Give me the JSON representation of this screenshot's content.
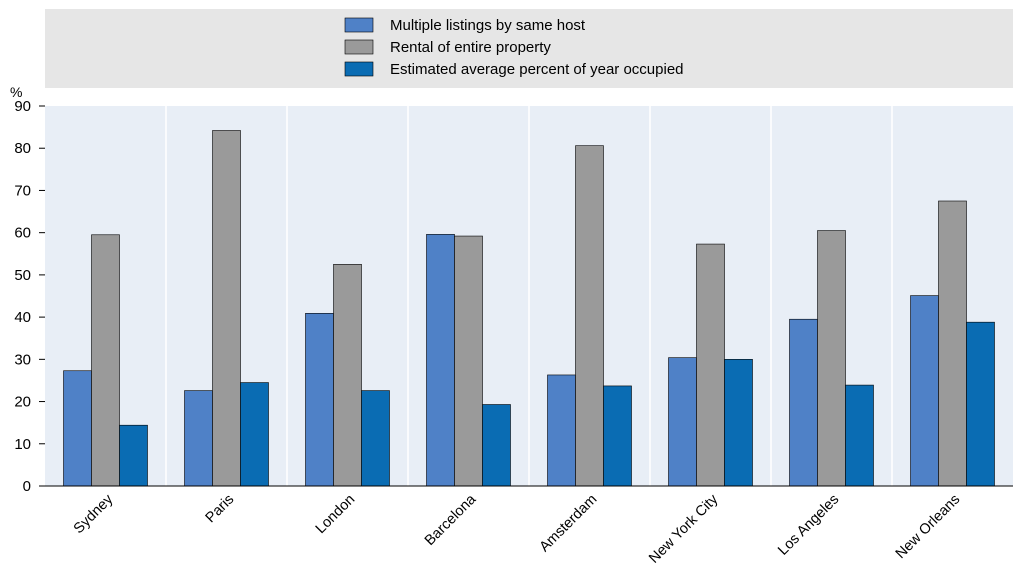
{
  "chart_data": {
    "type": "bar",
    "title": "",
    "xlabel": "",
    "ylabel": "%",
    "ylim": [
      0,
      90
    ],
    "yticks": [
      0,
      10,
      20,
      30,
      40,
      50,
      60,
      70,
      80,
      90
    ],
    "grid": "vertical separators between categories",
    "legend_placement": "top",
    "categories": [
      "Sydney",
      "Paris",
      "London",
      "Barcelona",
      "Amsterdam",
      "New York City",
      "Los Angeles",
      "New Orleans"
    ],
    "series": [
      {
        "name": "Multiple listings by same host",
        "color": "#4f81c7",
        "values": [
          27.3,
          22.6,
          40.9,
          59.6,
          26.3,
          30.4,
          39.5,
          45.1
        ]
      },
      {
        "name": "Rental of entire property",
        "color": "#9a9a9a",
        "values": [
          59.5,
          84.2,
          52.5,
          59.2,
          80.6,
          57.3,
          60.5,
          67.5
        ]
      },
      {
        "name": "Estimated average percent of year occupied",
        "color": "#0a6cb3",
        "values": [
          14.4,
          24.5,
          22.6,
          19.3,
          23.7,
          30.0,
          23.9,
          38.8
        ]
      }
    ]
  }
}
